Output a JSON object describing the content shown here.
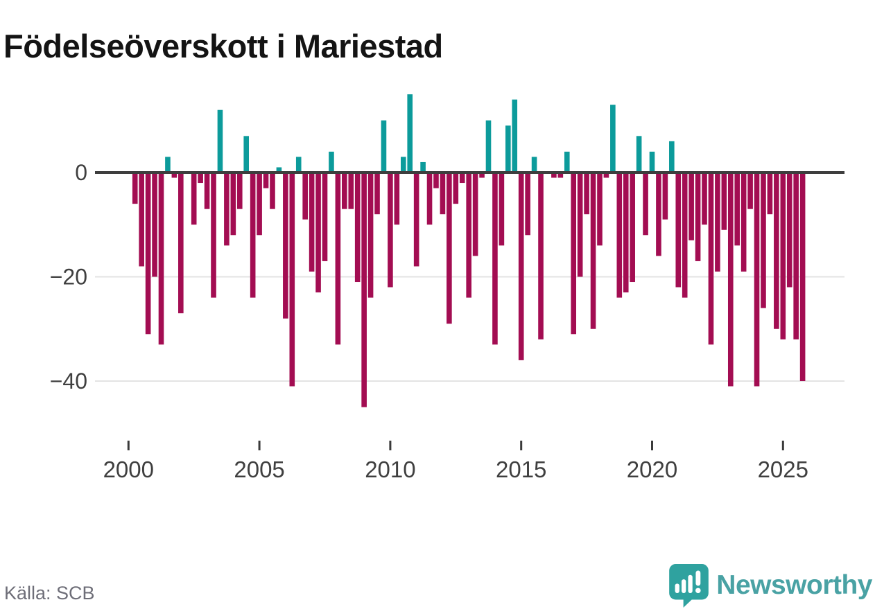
{
  "title": "Födelseöverskott i Mariestad",
  "source": "Källa: SCB",
  "logo": {
    "text": "Newsworthy",
    "icon": "newsworthy-speech-bubble-chart-icon"
  },
  "colors": {
    "positive_bar": "#0c9b9b",
    "negative_bar": "#a30d52",
    "zero_line": "#3e3e3e",
    "gridline": "#e3e3e3",
    "axis_text": "#3f3f3f",
    "title_text": "#141414",
    "source_text": "#6e6e78",
    "logo_teal": "#49a2a4",
    "logo_icon_teal": "#2fa29f"
  },
  "chart_data": {
    "type": "bar",
    "title": "Födelseöverskott i Mariestad",
    "xlabel": "",
    "ylabel": "",
    "period": "quarterly",
    "grid": "horizontal",
    "ylim": [
      -47,
      17
    ],
    "y_ticks": [
      {
        "value": 0,
        "label": "0"
      },
      {
        "value": -20,
        "label": "−20"
      },
      {
        "value": -40,
        "label": "−40"
      }
    ],
    "x_ticks": [
      {
        "year": 2000,
        "label": "2000"
      },
      {
        "year": 2005,
        "label": "2005"
      },
      {
        "year": 2010,
        "label": "2010"
      },
      {
        "year": 2015,
        "label": "2015"
      },
      {
        "year": 2020,
        "label": "2020"
      },
      {
        "year": 2025,
        "label": "2025"
      }
    ],
    "series_by_year": [
      {
        "year": 2000,
        "q": [
          0,
          -6,
          -18,
          -31
        ]
      },
      {
        "year": 2001,
        "q": [
          -20,
          -33,
          3,
          -1
        ]
      },
      {
        "year": 2002,
        "q": [
          -27,
          0,
          -10,
          -2
        ]
      },
      {
        "year": 2003,
        "q": [
          -7,
          -24,
          12,
          -14
        ]
      },
      {
        "year": 2004,
        "q": [
          -12,
          -7,
          7,
          -24
        ]
      },
      {
        "year": 2005,
        "q": [
          -12,
          -3,
          -7,
          1
        ]
      },
      {
        "year": 2006,
        "q": [
          -28,
          -41,
          3,
          -9
        ]
      },
      {
        "year": 2007,
        "q": [
          -19,
          -23,
          -17,
          4
        ]
      },
      {
        "year": 2008,
        "q": [
          -33,
          -7,
          -7,
          -21
        ]
      },
      {
        "year": 2009,
        "q": [
          -45,
          -24,
          -8,
          10
        ]
      },
      {
        "year": 2010,
        "q": [
          -22,
          -10,
          3,
          15
        ]
      },
      {
        "year": 2011,
        "q": [
          -18,
          2,
          -10,
          -3
        ]
      },
      {
        "year": 2012,
        "q": [
          -8,
          -29,
          -6,
          -2
        ]
      },
      {
        "year": 2013,
        "q": [
          -24,
          -16,
          -1,
          10
        ]
      },
      {
        "year": 2014,
        "q": [
          -33,
          -14,
          9,
          14
        ]
      },
      {
        "year": 2015,
        "q": [
          -36,
          -12,
          3,
          -32
        ]
      },
      {
        "year": 2016,
        "q": [
          0,
          -1,
          -1,
          4
        ]
      },
      {
        "year": 2017,
        "q": [
          -31,
          -20,
          -8,
          -30
        ]
      },
      {
        "year": 2018,
        "q": [
          -14,
          -1,
          13,
          -24
        ]
      },
      {
        "year": 2019,
        "q": [
          -23,
          -21,
          7,
          -12
        ]
      },
      {
        "year": 2020,
        "q": [
          4,
          -16,
          -9,
          6
        ]
      },
      {
        "year": 2021,
        "q": [
          -22,
          -24,
          -13,
          -17
        ]
      },
      {
        "year": 2022,
        "q": [
          -10,
          -33,
          -19,
          -11
        ]
      },
      {
        "year": 2023,
        "q": [
          -41,
          -14,
          -19,
          -7
        ]
      },
      {
        "year": 2024,
        "q": [
          -41,
          -26,
          -8,
          -30
        ]
      },
      {
        "year": 2025,
        "q": [
          -32,
          -22,
          -32,
          -40
        ]
      }
    ]
  }
}
